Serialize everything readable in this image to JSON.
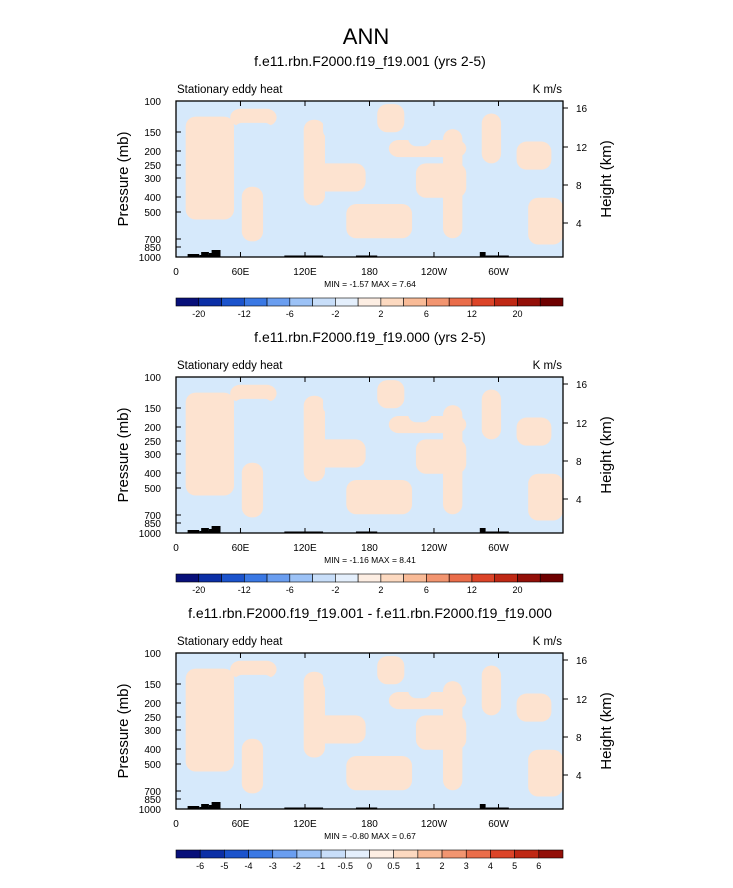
{
  "page_title": "ANN",
  "colors": {
    "neg_light": "#d6e9fb",
    "pos_light": "#fde3d0",
    "topo": "#000000",
    "frame": "#000000"
  },
  "chart_data": [
    {
      "type": "heatmap",
      "title": "f.e11.rbn.F2000.f19_f19.001 (yrs 2-5)",
      "left_label": "Stationary eddy heat",
      "units": "K m/s",
      "ylabel": "Pressure (mb)",
      "ylabel_right": "Height (km)",
      "pressure_ticks": [
        "100",
        "150",
        "200",
        "250",
        "300",
        "400",
        "500",
        "700",
        "850",
        "1000"
      ],
      "height_ticks": [
        "16",
        "12",
        "8",
        "4"
      ],
      "x_ticks": [
        "0",
        "60E",
        "120E",
        "180",
        "120W",
        "60W"
      ],
      "stats_text": "MIN = -1.57  MAX = 7.64",
      "colorbar": {
        "labels": [
          "-20",
          "-12",
          "-6",
          "-2",
          "2",
          "6",
          "12",
          "20"
        ],
        "colors": [
          "#08107a",
          "#0b2fa6",
          "#1b53cc",
          "#3a78e4",
          "#6a9ef0",
          "#9cc2f6",
          "#c8def9",
          "#e4effc",
          "#fdeee3",
          "#fcd9c0",
          "#f9bb97",
          "#f29570",
          "#ea6d4a",
          "#dc4428",
          "#bf2814",
          "#930f08",
          "#6e0000"
        ]
      }
    },
    {
      "type": "heatmap",
      "title": "f.e11.rbn.F2000.f19_f19.000 (yrs 2-5)",
      "left_label": "Stationary eddy heat",
      "units": "K m/s",
      "ylabel": "Pressure (mb)",
      "ylabel_right": "Height (km)",
      "pressure_ticks": [
        "100",
        "150",
        "200",
        "250",
        "300",
        "400",
        "500",
        "700",
        "850",
        "1000"
      ],
      "height_ticks": [
        "16",
        "12",
        "8",
        "4"
      ],
      "x_ticks": [
        "0",
        "60E",
        "120E",
        "180",
        "120W",
        "60W"
      ],
      "stats_text": "MIN = -1.16  MAX =  8.41",
      "colorbar": {
        "labels": [
          "-20",
          "-12",
          "-6",
          "-2",
          "2",
          "6",
          "12",
          "20"
        ],
        "colors": [
          "#08107a",
          "#0b2fa6",
          "#1b53cc",
          "#3a78e4",
          "#6a9ef0",
          "#9cc2f6",
          "#c8def9",
          "#e4effc",
          "#fdeee3",
          "#fcd9c0",
          "#f9bb97",
          "#f29570",
          "#ea6d4a",
          "#dc4428",
          "#bf2814",
          "#930f08",
          "#6e0000"
        ]
      }
    },
    {
      "type": "heatmap",
      "title": "f.e11.rbn.F2000.f19_f19.001 - f.e11.rbn.F2000.f19_f19.000",
      "left_label": "Stationary eddy heat",
      "units": "K m/s",
      "ylabel": "Pressure (mb)",
      "ylabel_right": "Height (km)",
      "pressure_ticks": [
        "100",
        "150",
        "200",
        "250",
        "300",
        "400",
        "500",
        "700",
        "850",
        "1000"
      ],
      "height_ticks": [
        "16",
        "12",
        "8",
        "4"
      ],
      "x_ticks": [
        "0",
        "60E",
        "120E",
        "180",
        "120W",
        "60W"
      ],
      "stats_text": "MIN = -0.80  MAX =  0.67",
      "colorbar": {
        "labels": [
          "-6",
          "-5",
          "-4",
          "-3",
          "-2",
          "-1",
          "-0.5",
          "0",
          "0.5",
          "1",
          "2",
          "3",
          "4",
          "5",
          "6"
        ],
        "colors": [
          "#08107a",
          "#0b2fa6",
          "#1b53cc",
          "#3a78e4",
          "#6a9ef0",
          "#9cc2f6",
          "#c8def9",
          "#e4effc",
          "#fdeee3",
          "#fcd9c0",
          "#f9bb97",
          "#f29570",
          "#ea6d4a",
          "#dc4428",
          "#bf2814",
          "#930f08"
        ]
      }
    }
  ]
}
